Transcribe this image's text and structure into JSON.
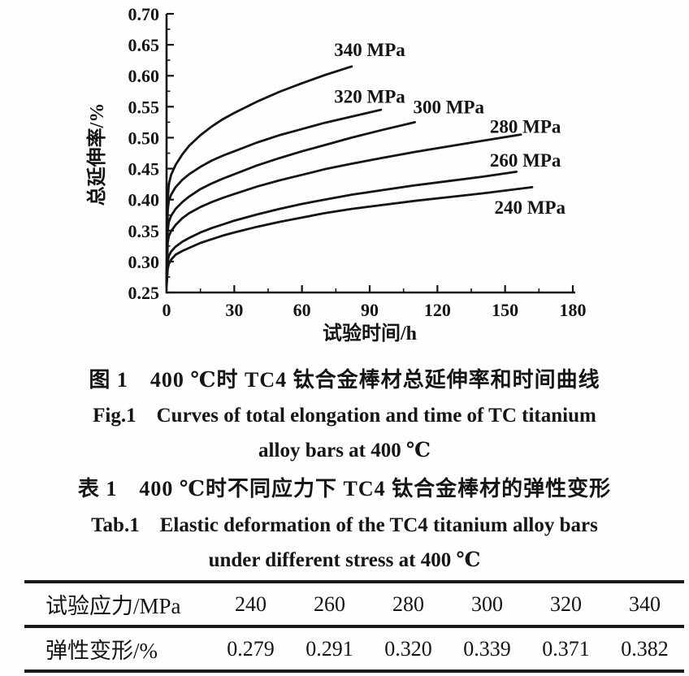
{
  "page": {
    "background": "#fffefd",
    "ink": "#141414"
  },
  "figure": {
    "caption_cn": "图 1　400 ℃时 TC4 钛合金棒材总延伸率和时间曲线",
    "caption_en_line1": "Fig.1　Curves of total elongation and time of TC titanium",
    "caption_en_line2": "alloy bars at 400 ℃"
  },
  "table": {
    "caption_cn": "表 1　400 ℃时不同应力下 TC4 钛合金棒材的弹性变形",
    "caption_en_line1": "Tab.1　Elastic deformation of the TC4 titanium alloy bars",
    "caption_en_line2": "under different stress at 400 ℃",
    "rows": [
      {
        "header": "试验应力/MPa",
        "values": [
          "240",
          "260",
          "280",
          "300",
          "320",
          "340"
        ]
      },
      {
        "header": "弹性变形/%",
        "values": [
          "0.279",
          "0.291",
          "0.320",
          "0.339",
          "0.371",
          "0.382"
        ]
      }
    ]
  },
  "chart_data": {
    "type": "line",
    "title": "",
    "xlabel": "试验时间/h",
    "ylabel": "总延伸率/%",
    "xlim": [
      0,
      180
    ],
    "ylim": [
      0.25,
      0.7
    ],
    "xticks": [
      0,
      30,
      60,
      90,
      120,
      150,
      180
    ],
    "yticks": [
      0.25,
      0.3,
      0.35,
      0.4,
      0.45,
      0.5,
      0.55,
      0.6,
      0.65,
      0.7
    ],
    "x_minor_step": 15,
    "y_minor_step": 0.025,
    "grid": false,
    "legend_position": "inline-labels",
    "line_color": "#141414",
    "series": [
      {
        "name": "340 MPa",
        "label_pos": [
          90,
          0.642
        ],
        "points": [
          [
            0,
            0.27
          ],
          [
            0.5,
            0.4
          ],
          [
            1,
            0.425
          ],
          [
            2,
            0.44
          ],
          [
            4,
            0.456
          ],
          [
            7,
            0.473
          ],
          [
            10,
            0.487
          ],
          [
            15,
            0.504
          ],
          [
            20,
            0.518
          ],
          [
            25,
            0.53
          ],
          [
            30,
            0.54
          ],
          [
            40,
            0.558
          ],
          [
            50,
            0.574
          ],
          [
            60,
            0.588
          ],
          [
            70,
            0.601
          ],
          [
            82,
            0.615
          ]
        ]
      },
      {
        "name": "320 MPa",
        "label_pos": [
          90,
          0.567
        ],
        "points": [
          [
            0,
            0.268
          ],
          [
            0.5,
            0.382
          ],
          [
            1,
            0.398
          ],
          [
            2,
            0.408
          ],
          [
            4,
            0.42
          ],
          [
            7,
            0.432
          ],
          [
            10,
            0.441
          ],
          [
            15,
            0.453
          ],
          [
            20,
            0.463
          ],
          [
            25,
            0.471
          ],
          [
            30,
            0.478
          ],
          [
            40,
            0.492
          ],
          [
            50,
            0.504
          ],
          [
            60,
            0.514
          ],
          [
            70,
            0.524
          ],
          [
            82,
            0.534
          ],
          [
            95,
            0.545
          ]
        ]
      },
      {
        "name": "300 MPa",
        "label_pos": [
          125,
          0.55
        ],
        "points": [
          [
            0,
            0.266
          ],
          [
            0.5,
            0.35
          ],
          [
            1,
            0.364
          ],
          [
            2,
            0.374
          ],
          [
            4,
            0.385
          ],
          [
            7,
            0.396
          ],
          [
            10,
            0.405
          ],
          [
            15,
            0.417
          ],
          [
            20,
            0.426
          ],
          [
            25,
            0.434
          ],
          [
            30,
            0.441
          ],
          [
            40,
            0.455
          ],
          [
            50,
            0.467
          ],
          [
            60,
            0.478
          ],
          [
            70,
            0.488
          ],
          [
            82,
            0.5
          ],
          [
            95,
            0.512
          ],
          [
            110,
            0.525
          ]
        ]
      },
      {
        "name": "280 MPa",
        "label_pos": [
          159,
          0.518
        ],
        "points": [
          [
            0,
            0.264
          ],
          [
            0.5,
            0.33
          ],
          [
            1,
            0.341
          ],
          [
            2,
            0.349
          ],
          [
            4,
            0.359
          ],
          [
            7,
            0.37
          ],
          [
            10,
            0.378
          ],
          [
            15,
            0.388
          ],
          [
            20,
            0.396
          ],
          [
            25,
            0.403
          ],
          [
            30,
            0.409
          ],
          [
            40,
            0.421
          ],
          [
            50,
            0.431
          ],
          [
            60,
            0.44
          ],
          [
            70,
            0.449
          ],
          [
            82,
            0.458
          ],
          [
            95,
            0.467
          ],
          [
            110,
            0.477
          ],
          [
            125,
            0.486
          ],
          [
            140,
            0.495
          ],
          [
            157,
            0.505
          ]
        ]
      },
      {
        "name": "260 MPa",
        "label_pos": [
          159,
          0.464
        ],
        "points": [
          [
            0,
            0.262
          ],
          [
            0.5,
            0.3
          ],
          [
            1,
            0.309
          ],
          [
            2,
            0.316
          ],
          [
            4,
            0.324
          ],
          [
            7,
            0.332
          ],
          [
            10,
            0.338
          ],
          [
            15,
            0.347
          ],
          [
            20,
            0.354
          ],
          [
            25,
            0.36
          ],
          [
            30,
            0.366
          ],
          [
            40,
            0.376
          ],
          [
            50,
            0.385
          ],
          [
            60,
            0.393
          ],
          [
            70,
            0.4
          ],
          [
            82,
            0.408
          ],
          [
            95,
            0.415
          ],
          [
            110,
            0.423
          ],
          [
            125,
            0.43
          ],
          [
            140,
            0.437
          ],
          [
            155,
            0.445
          ]
        ]
      },
      {
        "name": "240 MPa",
        "label_pos": [
          161,
          0.388
        ],
        "points": [
          [
            0,
            0.26
          ],
          [
            0.5,
            0.288
          ],
          [
            1,
            0.296
          ],
          [
            2,
            0.303
          ],
          [
            4,
            0.311
          ],
          [
            7,
            0.317
          ],
          [
            10,
            0.322
          ],
          [
            15,
            0.33
          ],
          [
            20,
            0.336
          ],
          [
            25,
            0.342
          ],
          [
            30,
            0.347
          ],
          [
            40,
            0.356
          ],
          [
            50,
            0.364
          ],
          [
            60,
            0.371
          ],
          [
            70,
            0.378
          ],
          [
            82,
            0.385
          ],
          [
            95,
            0.391
          ],
          [
            110,
            0.398
          ],
          [
            125,
            0.404
          ],
          [
            140,
            0.41
          ],
          [
            162,
            0.42
          ]
        ]
      }
    ]
  }
}
